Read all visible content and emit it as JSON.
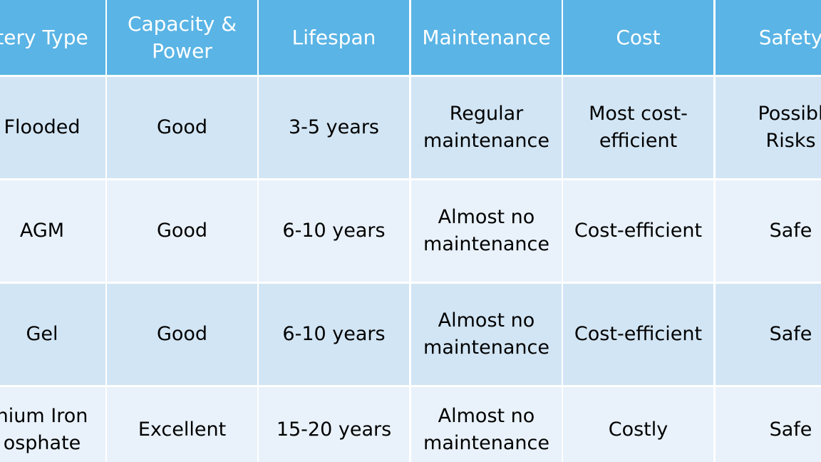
{
  "table": {
    "header": [
      "tery Type",
      "Capacity &\nPower",
      "Lifespan",
      "Maintenance",
      "Cost",
      "Safety"
    ],
    "rows": [
      [
        "Flooded",
        "Good",
        "3-5 years",
        "Regular\nmaintenance",
        "Most cost-\nefficient",
        "Possibl\nRisks"
      ],
      [
        "AGM",
        "Good",
        "6-10 years",
        "Almost no\nmaintenance",
        "Cost-efficient",
        "Safe"
      ],
      [
        "Gel",
        "Good",
        "6-10 years",
        "Almost no\nmaintenance",
        "Cost-efficient",
        "Safe"
      ],
      [
        "hium Iron\nosphate",
        "Excellent",
        "15-20 years",
        "Almost no\nmaintenance",
        "Costly",
        "Safe"
      ]
    ]
  }
}
